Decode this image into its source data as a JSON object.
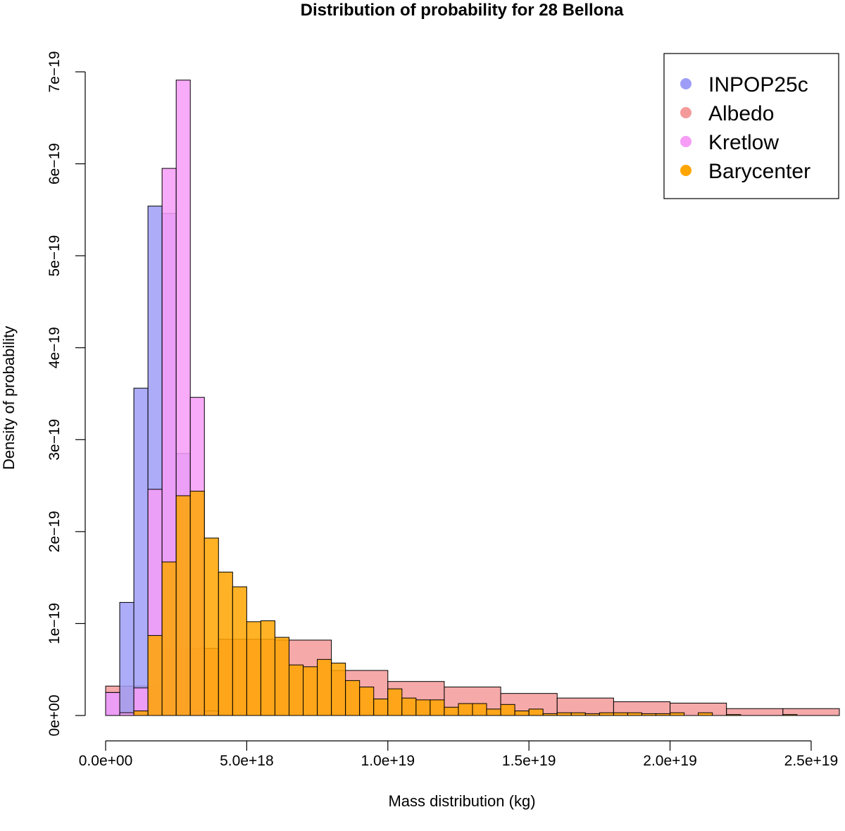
{
  "chart_data": {
    "type": "bar",
    "title": "Distribution of probability for 28 Bellona",
    "xlabel": "Mass distribution (kg)",
    "ylabel": "Density of probability",
    "xlim": [
      0,
      2.6e+19
    ],
    "ylim": [
      0,
      7e-19
    ],
    "xticks": [
      {
        "value": 0,
        "label": "0.0e+00"
      },
      {
        "value": 5e+18,
        "label": "5.0e+18"
      },
      {
        "value": 1e+19,
        "label": "1.0e+19"
      },
      {
        "value": 1.5e+19,
        "label": "1.5e+19"
      },
      {
        "value": 2e+19,
        "label": "2.0e+19"
      },
      {
        "value": 2.5e+19,
        "label": "2.5e+19"
      }
    ],
    "yticks": [
      {
        "value": 0,
        "label": "0e+00"
      },
      {
        "value": 1e-19,
        "label": "1e−19"
      },
      {
        "value": 2e-19,
        "label": "2e−19"
      },
      {
        "value": 3e-19,
        "label": "3e−19"
      },
      {
        "value": 4e-19,
        "label": "4e−19"
      },
      {
        "value": 5e-19,
        "label": "5e−19"
      },
      {
        "value": 6e-19,
        "label": "6e−19"
      },
      {
        "value": 7e-19,
        "label": "7e−19"
      }
    ],
    "legend_position": "top-right",
    "series": [
      {
        "name": "Albedo",
        "color": "#f49a9a",
        "bin_start": 0,
        "bin_width": 2e+18,
        "values": [
          3.2e-20,
          7.3e-20,
          8.3e-20,
          8.2e-20,
          4.9e-20,
          3.7e-20,
          3.1e-20,
          2.4e-20,
          1.9e-20,
          1.5e-20,
          1.35e-20,
          7.5e-21,
          7.5e-21
        ]
      },
      {
        "name": "INPOP25c",
        "color": "#9d9df7",
        "bin_start": 0,
        "bin_width": 5e+17,
        "values": [
          2.5e-20,
          1.23e-19,
          3.56e-19,
          5.54e-19,
          5.46e-19,
          2.85e-19,
          5e-21
        ]
      },
      {
        "name": "Kretlow",
        "color": "#f79cf7",
        "bin_start": 0,
        "bin_width": 5e+17,
        "values": [
          2.5e-20,
          3e-21,
          3e-20,
          2.46e-19,
          5.95e-19,
          6.91e-19,
          3.46e-19,
          5e-21
        ]
      },
      {
        "name": "Barycenter",
        "color": "#ffa500",
        "bin_start": 0,
        "bin_width": 5e+17,
        "values": [
          0,
          0,
          5e-21,
          8.7e-20,
          1.67e-19,
          2.39e-19,
          2.44e-19,
          1.93e-19,
          1.56e-19,
          1.4e-19,
          1.02e-19,
          1.03e-19,
          8.5e-20,
          5.5e-20,
          5.3e-20,
          6.1e-20,
          5.7e-20,
          3.8e-20,
          3.1e-20,
          1.8e-20,
          2.9e-20,
          1.9e-20,
          1.7e-20,
          1.7e-20,
          9e-21,
          1.3e-20,
          1.3e-20,
          7e-21,
          1.2e-20,
          5e-21,
          7e-21,
          2e-21,
          3e-21,
          3e-21,
          2e-21,
          3e-21,
          3e-21,
          3e-21,
          2e-21,
          2e-21,
          3e-21,
          0,
          3e-21,
          0,
          1e-21,
          0,
          0,
          0,
          1e-21
        ]
      }
    ]
  }
}
